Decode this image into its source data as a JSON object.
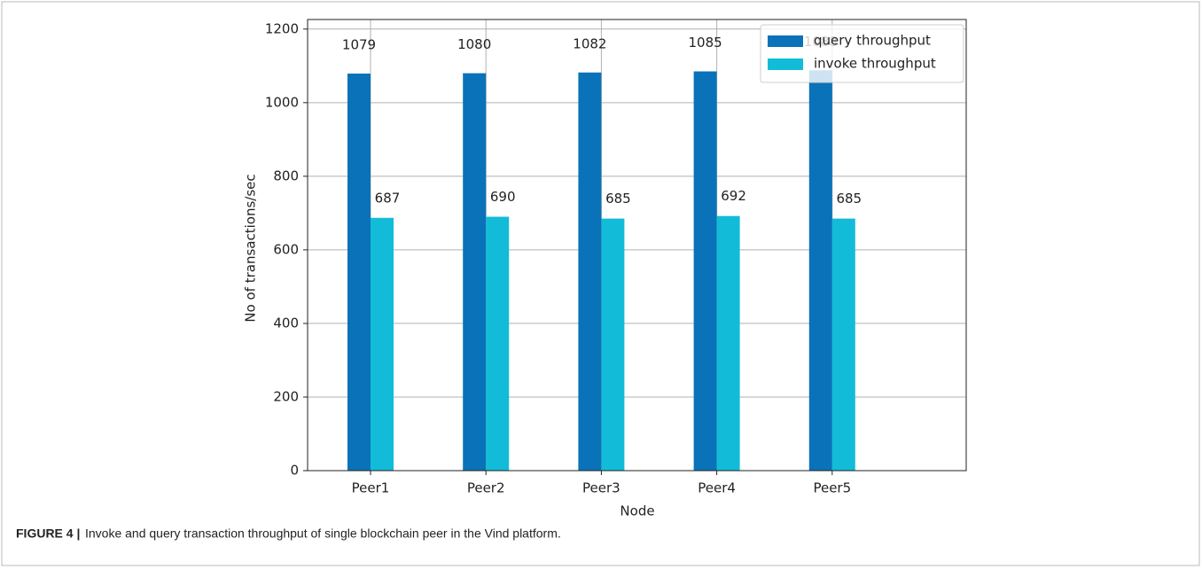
{
  "chart_data": {
    "type": "bar",
    "categories": [
      "Peer1",
      "Peer2",
      "Peer3",
      "Peer4",
      "Peer5"
    ],
    "series": [
      {
        "name": "query throughput",
        "color": "#0a72b8",
        "values": [
          1079,
          1080,
          1082,
          1085,
          1088
        ]
      },
      {
        "name": "invoke throughput",
        "color": "#12bcd8",
        "values": [
          687,
          690,
          685,
          692,
          685
        ]
      }
    ],
    "xlabel": "Node",
    "ylabel": "No of transactions/sec",
    "ylim": [
      0,
      1226
    ],
    "yticks": [
      0,
      200,
      400,
      600,
      800,
      1000,
      1200
    ],
    "grid": true,
    "legend": "upper right",
    "caption_label": "FIGURE 4 |",
    "caption": "Invoke and query transaction throughput of single blockchain peer in the Vind platform."
  }
}
